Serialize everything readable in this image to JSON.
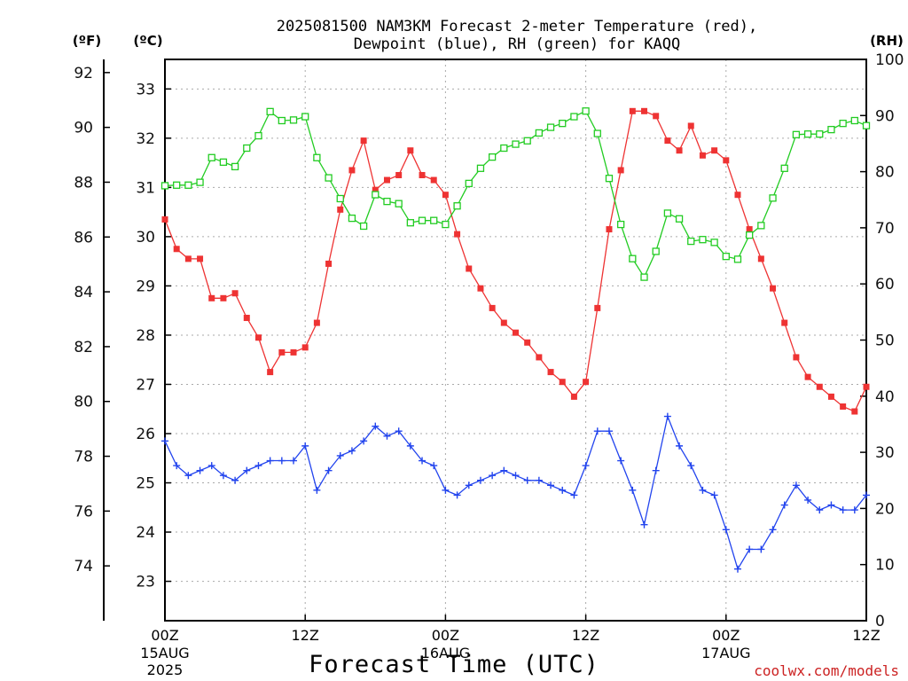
{
  "chart_data": {
    "type": "line",
    "title_line1": "2025081500 NAM3KM Forecast 2-meter Temperature (red),",
    "title_line2": "Dewpoint (blue), RH (green) for KAQQ",
    "xlabel": "Forecast Time (UTC)",
    "credit": "coolwx.com/models",
    "left_outer_unit": "(ºF)",
    "left_inner_unit": "(ºC)",
    "right_unit": "(RH)",
    "x_unit": "hours from 2025-08-15 00Z",
    "xlim": [
      0,
      60
    ],
    "ylim_c": [
      22.2,
      33.6
    ],
    "ylim_f": [
      72,
      92.48
    ],
    "ylim_rh": [
      0,
      100
    ],
    "grid": true,
    "f_ticks": [
      "74",
      "76",
      "78",
      "80",
      "82",
      "84",
      "86",
      "88",
      "90",
      "92"
    ],
    "c_ticks": [
      "23",
      "24",
      "25",
      "26",
      "27",
      "28",
      "29",
      "30",
      "31",
      "32",
      "33"
    ],
    "rh_ticks": [
      "0",
      "10",
      "20",
      "30",
      "40",
      "50",
      "60",
      "70",
      "80",
      "90",
      "100"
    ],
    "x_ticks": [
      {
        "hour": 0,
        "label": "00Z",
        "sub1": "15AUG",
        "sub2": "2025"
      },
      {
        "hour": 12,
        "label": "12Z",
        "sub1": "",
        "sub2": ""
      },
      {
        "hour": 24,
        "label": "00Z",
        "sub1": "16AUG",
        "sub2": ""
      },
      {
        "hour": 36,
        "label": "12Z",
        "sub1": "",
        "sub2": ""
      },
      {
        "hour": 48,
        "label": "00Z",
        "sub1": "17AUG",
        "sub2": ""
      },
      {
        "hour": 60,
        "label": "12Z",
        "sub1": "",
        "sub2": ""
      }
    ],
    "series": [
      {
        "name": "Temperature",
        "unit": "°C",
        "color": "#ee3333",
        "marker": "filled-square",
        "x": [
          0,
          1,
          2,
          3,
          4,
          5,
          6,
          7,
          8,
          9,
          10,
          11,
          12,
          13,
          14,
          15,
          16,
          17,
          18,
          19,
          20,
          21,
          22,
          23,
          24,
          25,
          26,
          27,
          28,
          29,
          30,
          31,
          32,
          33,
          34,
          35,
          36,
          37,
          38,
          39,
          40,
          41,
          42,
          43,
          44,
          45,
          46,
          47,
          48,
          49,
          50,
          51,
          52,
          53,
          54,
          55,
          56,
          57,
          58,
          59,
          60
        ],
        "values": [
          30.35,
          29.75,
          29.55,
          29.55,
          28.75,
          28.75,
          28.85,
          28.35,
          27.95,
          27.25,
          27.65,
          27.65,
          27.75,
          28.25,
          29.45,
          30.55,
          31.35,
          31.95,
          30.95,
          31.15,
          31.25,
          31.75,
          31.25,
          31.15,
          30.85,
          30.05,
          29.35,
          28.95,
          28.55,
          28.25,
          28.05,
          27.85,
          27.55,
          27.25,
          27.05,
          26.75,
          27.05,
          28.55,
          30.15,
          31.35,
          32.55,
          32.55,
          32.45,
          31.95,
          31.75,
          32.25,
          31.65,
          31.75,
          31.55,
          30.85,
          30.15,
          29.55,
          28.95,
          28.25,
          27.55,
          27.15,
          26.95,
          26.75,
          26.55,
          26.45,
          26.95
        ]
      },
      {
        "name": "Dewpoint",
        "unit": "°C",
        "color": "#2244ee",
        "marker": "plus",
        "x": [
          0,
          1,
          2,
          3,
          4,
          5,
          6,
          7,
          8,
          9,
          10,
          11,
          12,
          13,
          14,
          15,
          16,
          17,
          18,
          19,
          20,
          21,
          22,
          23,
          24,
          25,
          26,
          27,
          28,
          29,
          30,
          31,
          32,
          33,
          34,
          35,
          36,
          37,
          38,
          39,
          40,
          41,
          42,
          43,
          44,
          45,
          46,
          47,
          48,
          49,
          50,
          51,
          52,
          53,
          54,
          55,
          56,
          57,
          58,
          59,
          60
        ],
        "values": [
          25.85,
          25.35,
          25.15,
          25.25,
          25.35,
          25.15,
          25.05,
          25.25,
          25.35,
          25.45,
          25.45,
          25.45,
          25.75,
          24.85,
          25.25,
          25.55,
          25.65,
          25.85,
          26.15,
          25.95,
          26.05,
          25.75,
          25.45,
          25.35,
          24.85,
          24.75,
          24.95,
          25.05,
          25.15,
          25.25,
          25.15,
          25.05,
          25.05,
          24.95,
          24.85,
          24.75,
          25.35,
          26.05,
          26.05,
          25.45,
          24.85,
          24.15,
          25.25,
          26.35,
          25.75,
          25.35,
          24.85,
          24.75,
          24.05,
          23.25,
          23.65,
          23.65,
          24.05,
          24.55,
          24.95,
          24.65,
          24.45,
          24.55,
          24.45,
          24.45,
          24.75
        ]
      },
      {
        "name": "RH",
        "unit": "%",
        "color": "#22cc22",
        "marker": "open-square",
        "x": [
          0,
          1,
          2,
          3,
          4,
          5,
          6,
          7,
          8,
          9,
          10,
          11,
          12,
          13,
          14,
          15,
          16,
          17,
          18,
          19,
          20,
          21,
          22,
          23,
          24,
          25,
          26,
          27,
          28,
          29,
          30,
          31,
          32,
          33,
          34,
          35,
          36,
          37,
          38,
          39,
          40,
          41,
          42,
          43,
          44,
          45,
          46,
          47,
          48,
          49,
          50,
          51,
          52,
          53,
          54,
          55,
          56,
          57,
          58,
          59,
          60
        ],
        "values": [
          77.5,
          77.6,
          77.6,
          78.1,
          82.5,
          81.7,
          80.9,
          84.2,
          86.4,
          90.7,
          89.1,
          89.2,
          89.8,
          82.5,
          78.9,
          75.2,
          71.7,
          70.3,
          75.9,
          74.7,
          74.3,
          70.9,
          71.3,
          71.3,
          70.6,
          73.9,
          77.9,
          80.6,
          82.6,
          84.2,
          84.9,
          85.5,
          86.9,
          87.9,
          88.6,
          89.8,
          90.8,
          86.8,
          78.8,
          70.6,
          64.5,
          61.2,
          65.8,
          72.6,
          71.6,
          67.6,
          67.9,
          67.4,
          64.9,
          64.4,
          68.7,
          70.4,
          75.3,
          80.6,
          86.6,
          86.7,
          86.7,
          87.5,
          88.6,
          89.1,
          88.2
        ]
      }
    ]
  }
}
